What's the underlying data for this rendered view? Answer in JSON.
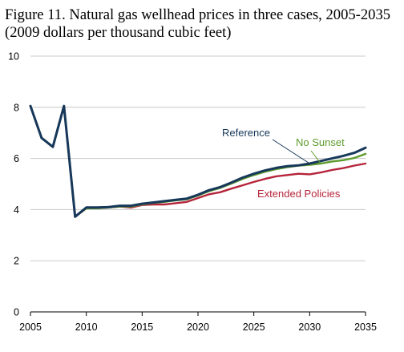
{
  "chart_data": {
    "type": "line",
    "title": "Figure 11. Natural gas wellhead prices in three cases, 2005-2035",
    "subtitle": "(2009 dollars per thousand cubic feet)",
    "xlabel": "",
    "ylabel": "",
    "xlim": [
      2005,
      2035
    ],
    "ylim": [
      0,
      10
    ],
    "x_ticks": [
      "2005",
      "2010",
      "2015",
      "2020",
      "2025",
      "2030",
      "2035"
    ],
    "y_ticks": [
      "0",
      "2",
      "4",
      "6",
      "8",
      "10"
    ],
    "grid": "horizontal",
    "x": [
      2005,
      2006,
      2007,
      2008,
      2009,
      2010,
      2011,
      2012,
      2013,
      2014,
      2015,
      2016,
      2017,
      2018,
      2019,
      2020,
      2021,
      2022,
      2023,
      2024,
      2025,
      2026,
      2027,
      2028,
      2029,
      2030,
      2031,
      2032,
      2033,
      2034,
      2035
    ],
    "series": [
      {
        "name": "Extended Policies",
        "color": "#b5243a",
        "values": [
          8.05,
          6.8,
          6.45,
          8.05,
          3.72,
          4.05,
          4.05,
          4.08,
          4.12,
          4.08,
          4.18,
          4.2,
          4.2,
          4.25,
          4.3,
          4.45,
          4.6,
          4.68,
          4.82,
          4.95,
          5.08,
          5.2,
          5.3,
          5.35,
          5.4,
          5.38,
          5.45,
          5.55,
          5.62,
          5.72,
          5.8
        ]
      },
      {
        "name": "No Sunset",
        "color": "#5e9b2c",
        "values": [
          8.05,
          6.8,
          6.45,
          8.05,
          3.72,
          4.05,
          4.05,
          4.08,
          4.12,
          4.12,
          4.2,
          4.26,
          4.3,
          4.36,
          4.4,
          4.55,
          4.72,
          4.85,
          5.02,
          5.2,
          5.35,
          5.48,
          5.58,
          5.66,
          5.72,
          5.75,
          5.8,
          5.88,
          5.93,
          6.02,
          6.18
        ]
      },
      {
        "name": "Reference",
        "color": "#17385a",
        "values": [
          8.05,
          6.8,
          6.45,
          8.05,
          3.72,
          4.08,
          4.08,
          4.1,
          4.15,
          4.15,
          4.23,
          4.28,
          4.33,
          4.38,
          4.43,
          4.58,
          4.76,
          4.88,
          5.06,
          5.25,
          5.4,
          5.53,
          5.63,
          5.7,
          5.73,
          5.8,
          5.9,
          6.0,
          6.1,
          6.22,
          6.42
        ]
      }
    ]
  }
}
